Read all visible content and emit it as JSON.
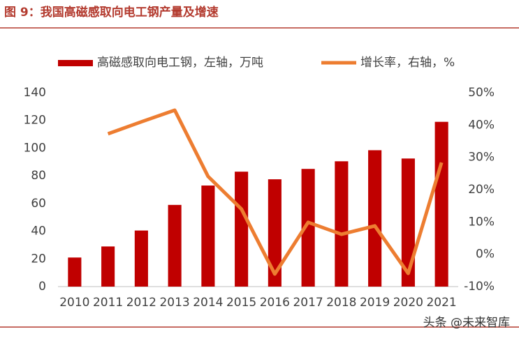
{
  "chart_data": {
    "type": "bar-line",
    "title": "图 9：我国高磁感取向电工钢产量及增速",
    "watermark": "头条 @未来智库",
    "categories": [
      "2010",
      "2011",
      "2012",
      "2013",
      "2014",
      "2015",
      "2016",
      "2017",
      "2018",
      "2019",
      "2020",
      "2021"
    ],
    "series": [
      {
        "name": "高磁感取向电工钢，左轴，万吨",
        "type": "bar",
        "axis": "y",
        "color": "#c00000",
        "values": [
          21,
          29,
          40.5,
          59,
          73,
          83,
          77.5,
          85,
          90.5,
          98.5,
          92.5,
          119
        ]
      },
      {
        "name": "增长率，右轴，%",
        "type": "line",
        "axis": "y2",
        "color": "#ed7d31",
        "values": [
          null,
          37.3,
          41,
          44.6,
          24.1,
          14,
          -6.1,
          9.9,
          6.2,
          8.8,
          -5.9,
          28.4
        ]
      }
    ],
    "ylim": [
      0,
      140
    ],
    "yticks": [
      0,
      20,
      40,
      60,
      80,
      100,
      120,
      140
    ],
    "y2lim": [
      -10,
      50
    ],
    "y2ticks": [
      {
        "value": -10,
        "label": "-10%"
      },
      {
        "value": 0,
        "label": "0%"
      },
      {
        "value": 10,
        "label": "10%"
      },
      {
        "value": 20,
        "label": "20%"
      },
      {
        "value": 30,
        "label": "30%"
      },
      {
        "value": 40,
        "label": "40%"
      },
      {
        "value": 50,
        "label": "50%"
      }
    ],
    "grid": false,
    "legend": "top"
  }
}
